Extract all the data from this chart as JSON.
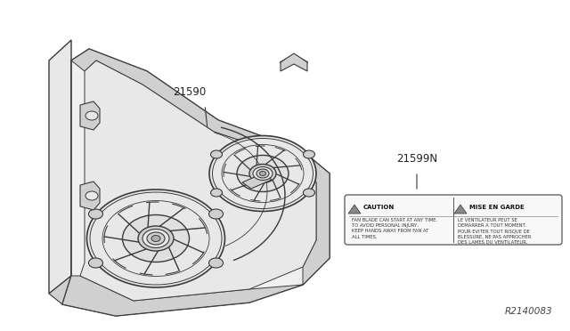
{
  "bg_color": "#ffffff",
  "fig_width": 6.4,
  "fig_height": 3.72,
  "dpi": 100,
  "part_label_1": "21590",
  "part_label_2": "21599N",
  "ref_code": "R2140083",
  "line_color": "#3a3a3a",
  "fill_light": "#e8e8e8",
  "fill_mid": "#d0d0d0",
  "fill_dark": "#b0b0b0",
  "label_fontsize": 8.5,
  "ref_fontsize": 7.5,
  "caution_text_en": "FAN BLADE CAN START AT ANY TIME.\nTO AVOID PERSONAL INJURY,\nKEEP HANDS AWAY FROM FAN AT\nALL TIMES.",
  "caution_text_fr": "LE VENTILATEUR PEUT SE\nDEMARRER A TOUT MOMENT.\nPOUR EVITER TOUT RISQUE DE\nBLESSURE, NE PAS APPROCHER\nDES LAMES DU VENTILATEUR."
}
